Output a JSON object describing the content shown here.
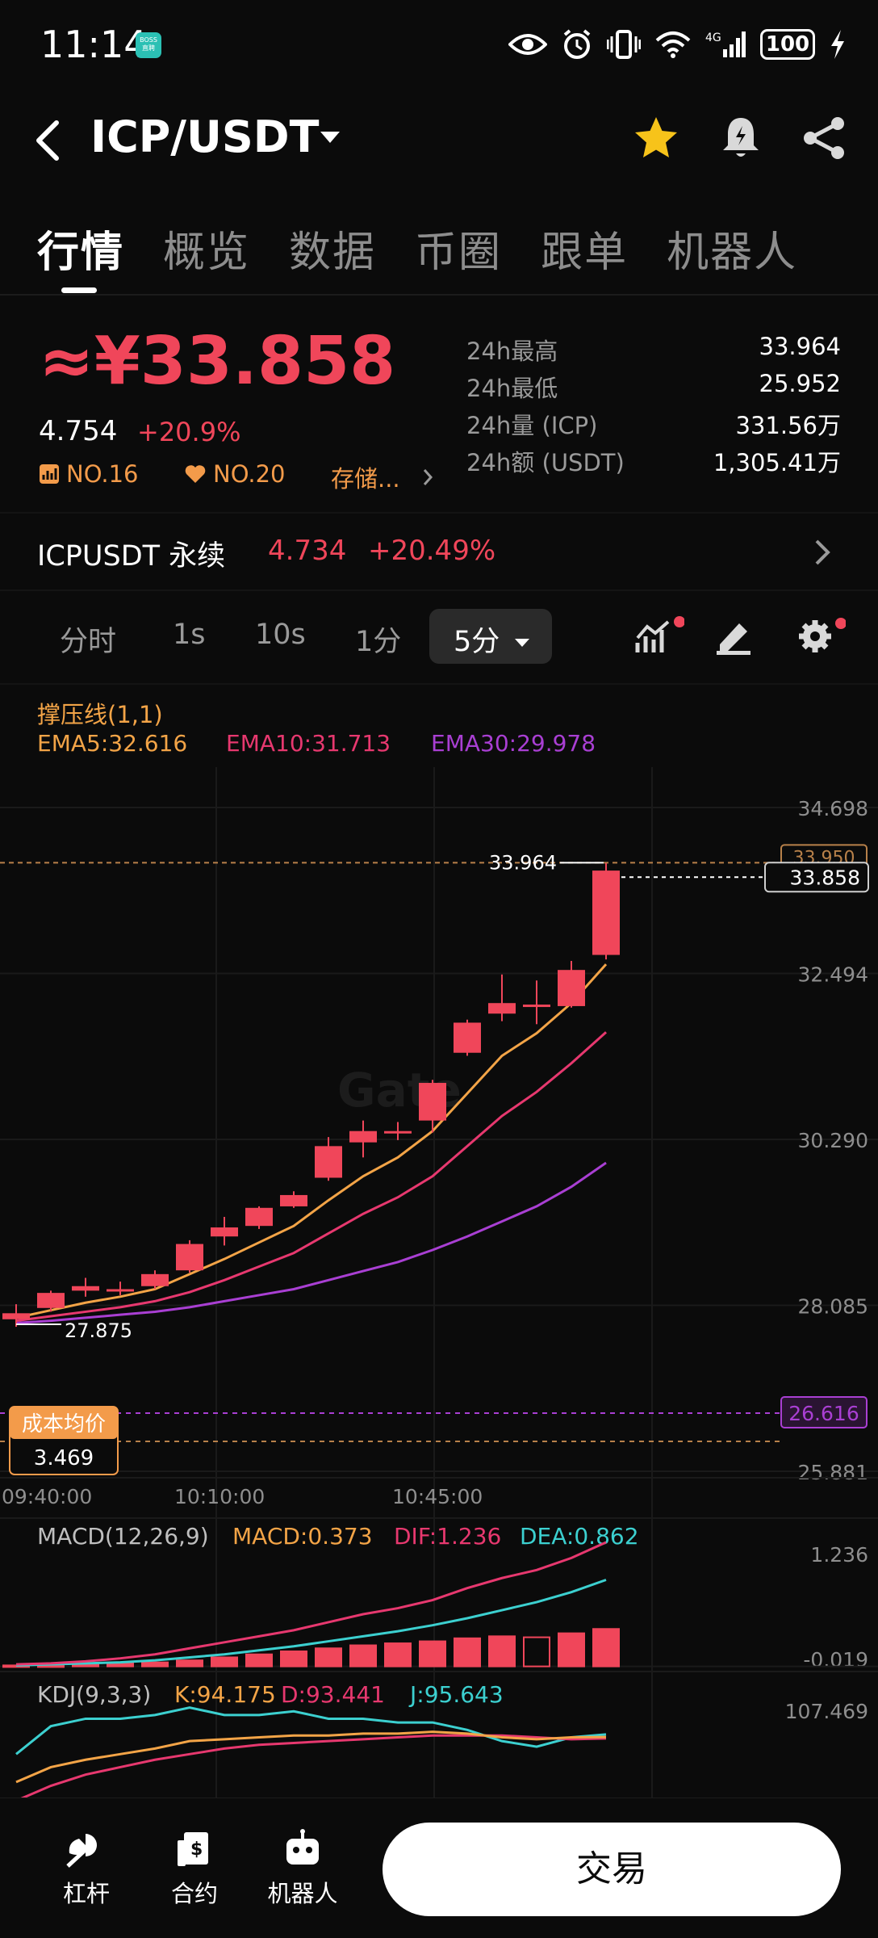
{
  "status_bar": {
    "time": "11:14",
    "boss_badge": "BOSS 直聘",
    "battery": "100"
  },
  "header": {
    "pair": "ICP/USDT"
  },
  "tabs": [
    "行情",
    "概览",
    "数据",
    "币圈",
    "跟单",
    "机器人"
  ],
  "price": {
    "main": "≈¥33.858",
    "usd": "4.754",
    "change": "+20.9%",
    "rank1": "NO.16",
    "rank2": "NO.20",
    "category": "存储..."
  },
  "stats": [
    {
      "label": "24h最高",
      "value": "33.964"
    },
    {
      "label": "24h最低",
      "value": "25.952"
    },
    {
      "label": "24h量 (ICP)",
      "value": "331.56万"
    },
    {
      "label": "24h额 (USDT)",
      "value": "1,305.41万"
    }
  ],
  "perpetual": {
    "name": "ICPUSDT 永续",
    "price": "4.734",
    "change": "+20.49%"
  },
  "timeframes": {
    "items": [
      "分时",
      "1s",
      "10s",
      "1分"
    ],
    "active": "5分"
  },
  "indicators": {
    "sr_line": "撑压线(1,1)",
    "ema5": "EMA5:32.616",
    "ema10": "EMA10:31.713",
    "ema30": "EMA30:29.978"
  },
  "colors": {
    "up": "#f0465a",
    "ema5": "#f3a447",
    "ema10": "#e7386f",
    "ema30": "#a93fd3",
    "dea": "#3cd0d0"
  },
  "chart_data": {
    "type": "candlestick",
    "y_ticks": [
      "34.698",
      "32.494",
      "30.290",
      "28.085",
      "25.881"
    ],
    "ylim": [
      25.881,
      34.698
    ],
    "x_ticks": [
      "09:40:00",
      "10:10:00",
      "10:45:00"
    ],
    "current_price": "33.858",
    "high_marker": "33.964",
    "low_marker": "27.875",
    "hidden_price_label": "33.950",
    "cost_line_value": "26.616",
    "cost_label": "成本均价",
    "cost_value": "3.469",
    "candles": [
      {
        "o": 27.9,
        "c": 27.98,
        "h": 28.1,
        "l": 27.8
      },
      {
        "o": 28.05,
        "c": 28.25,
        "h": 28.28,
        "l": 28.0
      },
      {
        "o": 28.28,
        "c": 28.34,
        "h": 28.45,
        "l": 28.2
      },
      {
        "o": 28.3,
        "c": 28.3,
        "h": 28.4,
        "l": 28.22
      },
      {
        "o": 28.34,
        "c": 28.5,
        "h": 28.55,
        "l": 28.3
      },
      {
        "o": 28.55,
        "c": 28.9,
        "h": 28.95,
        "l": 28.52
      },
      {
        "o": 29.0,
        "c": 29.12,
        "h": 29.26,
        "l": 28.88
      },
      {
        "o": 29.14,
        "c": 29.38,
        "h": 29.4,
        "l": 29.1
      },
      {
        "o": 29.4,
        "c": 29.55,
        "h": 29.6,
        "l": 29.38
      },
      {
        "o": 29.78,
        "c": 30.2,
        "h": 30.32,
        "l": 29.74
      },
      {
        "o": 30.25,
        "c": 30.4,
        "h": 30.54,
        "l": 30.05
      },
      {
        "o": 30.4,
        "c": 30.4,
        "h": 30.52,
        "l": 30.28
      },
      {
        "o": 30.54,
        "c": 31.04,
        "h": 31.08,
        "l": 30.38
      },
      {
        "o": 31.44,
        "c": 31.84,
        "h": 31.88,
        "l": 31.4
      },
      {
        "o": 31.96,
        "c": 32.1,
        "h": 32.48,
        "l": 31.86
      },
      {
        "o": 32.08,
        "c": 32.08,
        "h": 32.4,
        "l": 31.82
      },
      {
        "o": 32.06,
        "c": 32.54,
        "h": 32.66,
        "l": 32.04
      },
      {
        "o": 32.74,
        "c": 33.86,
        "h": 33.96,
        "l": 32.68
      }
    ],
    "ema5": [
      27.92,
      28.02,
      28.12,
      28.2,
      28.3,
      28.5,
      28.7,
      28.92,
      29.14,
      29.48,
      29.8,
      30.05,
      30.4,
      30.9,
      31.4,
      31.7,
      32.1,
      32.616
    ],
    "ema10": [
      27.88,
      27.94,
      28.0,
      28.06,
      28.14,
      28.26,
      28.42,
      28.6,
      28.78,
      29.04,
      29.3,
      29.52,
      29.8,
      30.2,
      30.6,
      30.92,
      31.3,
      31.713
    ],
    "ema30": [
      27.85,
      27.88,
      27.92,
      27.96,
      28.0,
      28.06,
      28.14,
      28.22,
      28.3,
      28.42,
      28.54,
      28.66,
      28.82,
      29.0,
      29.2,
      29.4,
      29.66,
      29.978
    ]
  },
  "macd": {
    "label": "MACD(12,26,9)",
    "macd": "MACD:0.373",
    "dif": "DIF:1.236",
    "dea": "DEA:0.862",
    "top": "1.236",
    "bottom": "-0.019",
    "hist": [
      0.01,
      0.01,
      0.02,
      0.03,
      0.04,
      0.06,
      0.09,
      0.12,
      0.15,
      0.18,
      0.21,
      0.23,
      0.25,
      0.28,
      0.3,
      0.29,
      0.33,
      0.373
    ],
    "dif_line": [
      0.02,
      0.03,
      0.05,
      0.08,
      0.12,
      0.18,
      0.24,
      0.3,
      0.36,
      0.44,
      0.52,
      0.58,
      0.66,
      0.78,
      0.88,
      0.96,
      1.08,
      1.236
    ],
    "dea_line": [
      0.01,
      0.02,
      0.03,
      0.04,
      0.06,
      0.09,
      0.12,
      0.16,
      0.2,
      0.25,
      0.3,
      0.35,
      0.41,
      0.48,
      0.56,
      0.64,
      0.74,
      0.862
    ]
  },
  "kdj": {
    "label": "KDJ(9,3,3)",
    "k": "K:94.175",
    "d": "D:93.441",
    "j": "J:95.643",
    "top": "107.469",
    "k_line": [
      70,
      78,
      82,
      85,
      88,
      92,
      93,
      94,
      95,
      95,
      96,
      96,
      97,
      96,
      94,
      93,
      94,
      94.2
    ],
    "d_line": [
      60,
      68,
      74,
      78,
      82,
      85,
      88,
      90,
      91,
      92,
      93,
      94,
      95,
      95,
      95,
      94,
      93,
      93.4
    ],
    "j_line": [
      85,
      100,
      104,
      104,
      106,
      110,
      106,
      106,
      108,
      104,
      104,
      102,
      102,
      98,
      92,
      89,
      94,
      95.6
    ]
  },
  "bottom_nav": {
    "leverage": "杠杆",
    "contract": "合约",
    "robot": "机器人",
    "trade": "交易"
  }
}
